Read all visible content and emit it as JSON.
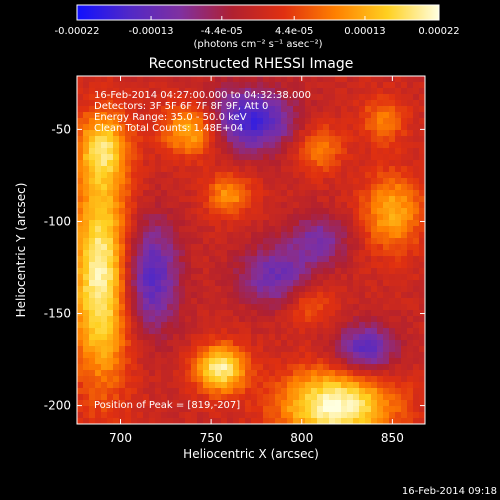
{
  "chart_data": {
    "type": "heatmap",
    "title": "Reconstructed RHESSI Image",
    "xlabel": "Heliocentric X (arcsec)",
    "ylabel": "Heliocentric Y (arcsec)",
    "xlim": [
      676,
      868
    ],
    "ylim": [
      -210,
      -21
    ],
    "x_ticks": [
      "700",
      "750",
      "800",
      "850"
    ],
    "x_tick_values": [
      700,
      750,
      800,
      850
    ],
    "y_ticks": [
      "-50",
      "-100",
      "-150",
      "-200"
    ],
    "y_tick_values": [
      -50,
      -100,
      -150,
      -200
    ],
    "colorbar": {
      "ticks": [
        "-0.00022",
        "-0.00013",
        "-4.4e-05",
        "4.4e-05",
        "0.00013",
        "0.00022"
      ],
      "tick_values": [
        -0.00022,
        -0.00013,
        -4.4e-05,
        4.4e-05,
        0.00013,
        0.00022
      ],
      "range": [
        -0.00022,
        0.00022
      ],
      "unit_label": "(photons cm⁻² s⁻¹ asec⁻²)",
      "colors": [
        "#1010ff",
        "#5028c8",
        "#8030a0",
        "#b02030",
        "#e03010",
        "#ff8000",
        "#ffd020",
        "#ffffe0"
      ]
    },
    "annotations": {
      "time": "16-Feb-2014 04:27:00.000 to 04:32:38.000",
      "detectors": "Detectors: 3F 5F 6F 7F 8F 9F, Att 0",
      "energy": "Energy Range: 35.0 - 50.0 keV",
      "clean": "Clean    Total Counts: 1.48E+04",
      "peak": "Position of Peak = [819,-207]"
    },
    "sources": [
      {
        "x": 690,
        "y": -130,
        "value": 0.00022,
        "sx": 12,
        "sy": 40
      },
      {
        "x": 690,
        "y": -60,
        "value": 0.00014,
        "sx": 10,
        "sy": 14
      },
      {
        "x": 740,
        "y": -50,
        "value": 0.00016,
        "sx": 12,
        "sy": 10
      },
      {
        "x": 755,
        "y": -180,
        "value": 0.0002,
        "sx": 10,
        "sy": 9
      },
      {
        "x": 819,
        "y": -200,
        "value": 0.00022,
        "sx": 22,
        "sy": 14
      },
      {
        "x": 850,
        "y": -95,
        "value": 0.00013,
        "sx": 12,
        "sy": 15
      },
      {
        "x": 805,
        "y": -145,
        "value": 7e-05,
        "sx": 10,
        "sy": 8
      },
      {
        "x": 760,
        "y": -85,
        "value": 0.00011,
        "sx": 9,
        "sy": 8
      },
      {
        "x": 810,
        "y": -60,
        "value": 0.0001,
        "sx": 9,
        "sy": 9
      },
      {
        "x": 845,
        "y": -45,
        "value": 9e-05,
        "sx": 9,
        "sy": 9
      },
      {
        "x": 770,
        "y": -45,
        "value": -0.00018,
        "sx": 18,
        "sy": 12
      },
      {
        "x": 715,
        "y": -130,
        "value": -0.00016,
        "sx": 12,
        "sy": 22
      },
      {
        "x": 785,
        "y": -130,
        "value": -0.00012,
        "sx": 14,
        "sy": 12
      },
      {
        "x": 835,
        "y": -170,
        "value": -0.00015,
        "sx": 12,
        "sy": 10
      },
      {
        "x": 810,
        "y": -110,
        "value": -0.0001,
        "sx": 12,
        "sy": 10
      }
    ]
  },
  "footer": {
    "timestamp": "16-Feb-2014 09:18"
  }
}
